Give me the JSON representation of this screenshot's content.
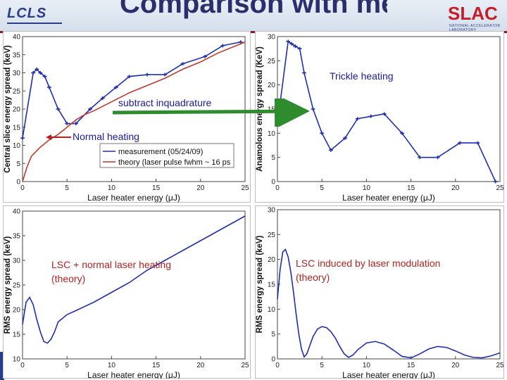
{
  "header": {
    "title": "Comparison with measurements",
    "lcls_logo": "LCLS",
    "slac_logo": "SLAC",
    "slac_subtitle": "NATIONAL ACCELERATOR LABORATORY",
    "accent_color": "#8a1c2c"
  },
  "annotations": {
    "subtract": "subtract inquadrature",
    "normal_heating": "Normal heating",
    "trickle_heating": "Trickle heating",
    "lsc_normal": "LSC + normal laser heating\n(theory)",
    "lsc_induced": "LSC induced by laser modulation\n(theory)",
    "arrow_color": "#2e8b2e",
    "text_color_blue": "#1a1aa0",
    "text_color_red": "#b22222"
  },
  "chart_data": [
    {
      "id": "top-left",
      "type": "line",
      "xlabel": "Laser heater energy (μJ)",
      "ylabel": "Central slice energy spread (keV)",
      "xlim": [
        0,
        25
      ],
      "ylim": [
        0,
        40
      ],
      "xticks": [
        0,
        5,
        10,
        15,
        20,
        25
      ],
      "yticks": [
        0,
        5,
        10,
        15,
        20,
        25,
        30,
        35,
        40
      ],
      "legend": [
        "measurement (05/24/09)",
        "theory (laser pulse fwhm ~ 16 ps"
      ],
      "series": [
        {
          "name": "measurement (05/24/09)",
          "color": "#1f2fb0",
          "markers": true,
          "x": [
            0,
            1.2,
            1.6,
            2.0,
            2.5,
            3.0,
            4.0,
            5.0,
            6.0,
            7.6,
            9.0,
            10.5,
            12.0,
            14.0,
            16.0,
            18.0,
            20.5,
            22.5,
            24.5
          ],
          "y": [
            12,
            30,
            31,
            30,
            29,
            26,
            20,
            16,
            16,
            20,
            23,
            26,
            29,
            29.5,
            29.5,
            32.5,
            34.5,
            37.5,
            38.5
          ]
        },
        {
          "name": "theory (laser pulse fwhm ~ 16 ps",
          "color": "#c0392b",
          "markers": false,
          "x": [
            0,
            0.5,
            1,
            2,
            3,
            4,
            5,
            6,
            7,
            8,
            10,
            12,
            14,
            16,
            18,
            20,
            22,
            24,
            25
          ],
          "y": [
            0,
            4,
            7,
            9.5,
            11.5,
            13,
            15,
            17,
            18.5,
            19.5,
            22,
            24.5,
            26.5,
            28.5,
            31,
            33,
            35.5,
            37.5,
            38.5
          ]
        }
      ]
    },
    {
      "id": "top-right",
      "type": "line",
      "xlabel": "Laser heater energy (μJ)",
      "ylabel": "Anamolous energy spread (KeV)",
      "xlim": [
        0,
        25
      ],
      "ylim": [
        0,
        30
      ],
      "xticks": [
        0,
        5,
        10,
        15,
        20,
        25
      ],
      "yticks": [
        0,
        5,
        10,
        15,
        20,
        25,
        30
      ],
      "series": [
        {
          "name": "trickle heating",
          "color": "#1f2fb0",
          "markers": true,
          "x": [
            0,
            1.2,
            1.6,
            2.0,
            2.5,
            3.0,
            4.0,
            5.0,
            6.0,
            7.6,
            9.0,
            10.5,
            12.0,
            14.0,
            16.0,
            18.0,
            20.5,
            22.5,
            24.5
          ],
          "y": [
            12,
            29,
            28.5,
            28,
            27.5,
            22.5,
            15,
            10,
            6.5,
            9,
            13,
            13.5,
            14,
            10,
            5,
            5,
            8,
            8,
            0
          ]
        }
      ]
    },
    {
      "id": "bottom-left",
      "type": "line",
      "xlabel": "Laser heater energy (μJ)",
      "ylabel": "RMS energy spread (keV)",
      "xlim": [
        0,
        25
      ],
      "ylim": [
        10,
        40
      ],
      "xticks": [
        0,
        5,
        10,
        15,
        20,
        25
      ],
      "yticks": [
        10,
        15,
        20,
        25,
        30,
        35,
        40
      ],
      "series": [
        {
          "name": "theory",
          "color": "#1f2fb0",
          "markers": false,
          "x": [
            0,
            0.4,
            0.8,
            1.2,
            1.6,
            2.0,
            2.4,
            2.8,
            3.2,
            3.6,
            4.0,
            5.0,
            6.0,
            8.0,
            10,
            12,
            14,
            16,
            18,
            20,
            22,
            24,
            25
          ],
          "y": [
            17,
            21.5,
            22.5,
            21,
            18,
            15.5,
            13.5,
            13.2,
            14,
            15.5,
            17.5,
            19,
            19.8,
            21.5,
            23.5,
            25.5,
            28,
            30,
            32,
            34,
            36,
            38,
            39
          ]
        }
      ]
    },
    {
      "id": "bottom-right",
      "type": "line",
      "xlabel": "Laser heater energy (μJ)",
      "ylabel": "RMS energy spread (keV)",
      "xlim": [
        0,
        25
      ],
      "ylim": [
        0,
        30
      ],
      "xticks": [
        0,
        5,
        10,
        15,
        20,
        25
      ],
      "yticks": [
        0,
        5,
        10,
        15,
        20,
        25,
        30
      ],
      "series": [
        {
          "name": "theory",
          "color": "#1f2fb0",
          "markers": false,
          "x": [
            0,
            0.3,
            0.6,
            0.9,
            1.2,
            1.5,
            1.8,
            2.1,
            2.4,
            2.7,
            3.0,
            3.3,
            3.6,
            4.0,
            4.5,
            5.0,
            5.5,
            6.0,
            6.5,
            7.0,
            7.5,
            8.0,
            8.5,
            9.0,
            10,
            11,
            12,
            13,
            14,
            15,
            16,
            17,
            18,
            19,
            20,
            21,
            22,
            23,
            24,
            25
          ],
          "y": [
            12,
            18,
            21.5,
            22,
            20.5,
            17.5,
            13.5,
            9,
            5,
            2,
            0.4,
            1,
            2.5,
            4.5,
            6,
            6.5,
            6.3,
            5.5,
            4.2,
            2.5,
            1,
            0.3,
            0.8,
            1.8,
            3.2,
            3.5,
            3,
            1.8,
            0.5,
            0.2,
            1,
            2,
            2.5,
            2.3,
            1.6,
            0.8,
            0.3,
            0.2,
            0.6,
            1.2
          ]
        }
      ]
    }
  ]
}
